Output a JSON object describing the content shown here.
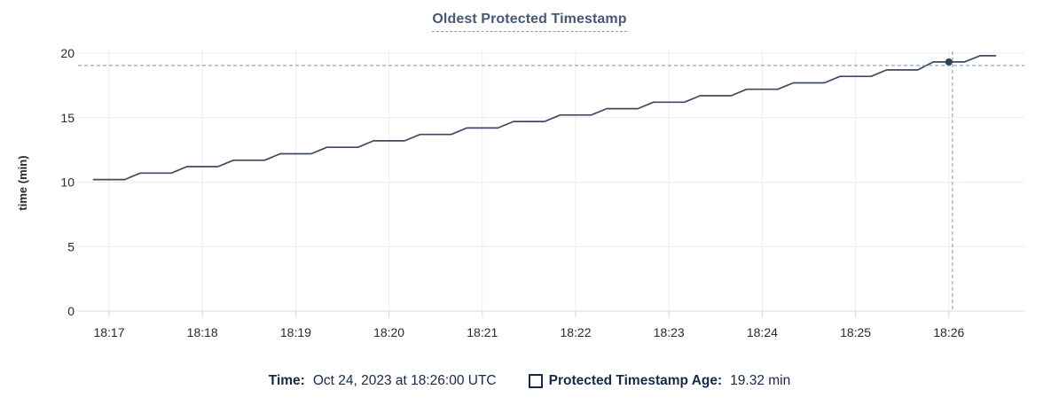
{
  "chart_data": {
    "type": "line",
    "title": "Oldest Protected Timestamp",
    "ylabel": "time (min)",
    "ylim": [
      0,
      20
    ],
    "yticks": [
      0,
      5,
      10,
      15,
      20
    ],
    "xticks": [
      "18:17",
      "18:18",
      "18:19",
      "18:20",
      "18:21",
      "18:22",
      "18:23",
      "18:24",
      "18:25",
      "18:26"
    ],
    "grid": true,
    "legend_position": "bottom",
    "series": [
      {
        "name": "Protected Timestamp Age",
        "unit": "min",
        "start_time": "18:16:50",
        "sample_interval_sec": 10,
        "values": [
          10.2,
          10.2,
          10.2,
          10.7,
          10.7,
          10.7,
          11.2,
          11.2,
          11.2,
          11.7,
          11.7,
          11.7,
          12.2,
          12.2,
          12.2,
          12.7,
          12.7,
          12.7,
          13.2,
          13.2,
          13.2,
          13.7,
          13.7,
          13.7,
          14.2,
          14.2,
          14.2,
          14.7,
          14.7,
          14.7,
          15.2,
          15.2,
          15.2,
          15.7,
          15.7,
          15.7,
          16.2,
          16.2,
          16.2,
          16.7,
          16.7,
          16.7,
          17.2,
          17.2,
          17.2,
          17.7,
          17.7,
          17.7,
          18.2,
          18.2,
          18.2,
          18.7,
          18.7,
          18.7,
          19.32,
          19.32,
          19.32,
          19.8,
          19.8
        ]
      }
    ],
    "hover": {
      "time": "18:26:00",
      "age_min": 19.32,
      "h_line_value": 19.05
    }
  },
  "legend": {
    "time_label": "Time:",
    "time_value": "Oct 24, 2023 at 18:26:00 UTC",
    "series_label": "Protected Timestamp Age:",
    "series_value": "19.32 min"
  },
  "colors": {
    "title": "#475872",
    "title_underline": "#8b9cb8",
    "line": "#3e4a62",
    "dot": "#323f58",
    "crosshair": "#98b1bf",
    "grid": "#ececee",
    "axis": "#d9d9db",
    "tick_text": "#242a33",
    "legend_text": "#16294a"
  }
}
